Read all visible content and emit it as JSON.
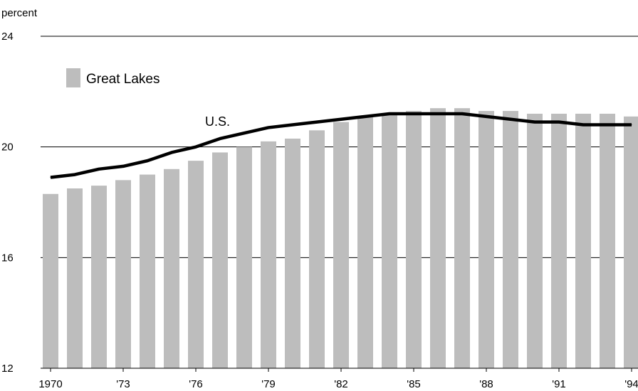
{
  "chart_data": {
    "type": "bar",
    "title": "",
    "unit_label": "percent",
    "xlabel": "",
    "ylabel": "",
    "ylim": [
      12,
      24
    ],
    "yticks": [
      12,
      16,
      20,
      24
    ],
    "grid": true,
    "legend_placement": "top-left",
    "categories": [
      "1970",
      "1971",
      "1972",
      "1973",
      "1974",
      "1975",
      "1976",
      "1977",
      "1978",
      "1979",
      "1980",
      "1981",
      "1982",
      "1983",
      "1984",
      "1985",
      "1986",
      "1987",
      "1988",
      "1989",
      "1990",
      "1991",
      "1992",
      "1993",
      "1994"
    ],
    "tick_labels": [
      "1970",
      "",
      "",
      "'73",
      "",
      "",
      "'76",
      "",
      "",
      "'79",
      "",
      "",
      "'82",
      "",
      "",
      "'85",
      "",
      "",
      "'88",
      "",
      "",
      "'91",
      "",
      "",
      "'94"
    ],
    "series": [
      {
        "name": "Great Lakes",
        "kind": "bar",
        "color": "#bdbdbd",
        "values": [
          18.3,
          18.5,
          18.6,
          18.8,
          19.0,
          19.2,
          19.5,
          19.8,
          20.0,
          20.2,
          20.3,
          20.6,
          20.9,
          21.1,
          21.2,
          21.3,
          21.4,
          21.4,
          21.3,
          21.3,
          21.2,
          21.2,
          21.2,
          21.2,
          21.1
        ]
      },
      {
        "name": "U.S.",
        "kind": "line",
        "color": "#000000",
        "values": [
          18.9,
          19.0,
          19.2,
          19.3,
          19.5,
          19.8,
          20.0,
          20.3,
          20.5,
          20.7,
          20.8,
          20.9,
          21.0,
          21.1,
          21.2,
          21.2,
          21.2,
          21.2,
          21.1,
          21.0,
          20.9,
          20.9,
          20.8,
          20.8,
          20.8
        ]
      }
    ]
  }
}
